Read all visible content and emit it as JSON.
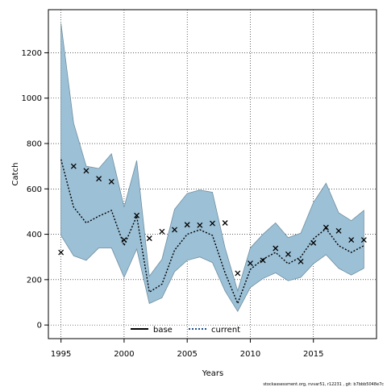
{
  "chart_data": {
    "type": "line",
    "xlabel": "Years",
    "ylabel": "Catch",
    "xlim": [
      1994,
      2020
    ],
    "ylim": [
      -60,
      1390
    ],
    "xticks": [
      1995,
      2000,
      2005,
      2010,
      2015
    ],
    "yticks": [
      0,
      200,
      400,
      600,
      800,
      1000,
      1200
    ],
    "grid": true,
    "legend": {
      "placement": "bottom-center",
      "entries": [
        {
          "label": "base",
          "style": "solid",
          "color": "#000000"
        },
        {
          "label": "current",
          "style": "dotted",
          "color": "#1b4f8a"
        }
      ]
    },
    "colors": {
      "band_fill": "#9cc0d6",
      "band_edge": "#6f8fa0",
      "median_line": "#000000",
      "marker": "#000000"
    },
    "years": [
      1995,
      1996,
      1997,
      1998,
      1999,
      2000,
      2001,
      2002,
      2003,
      2004,
      2005,
      2006,
      2007,
      2008,
      2009,
      2010,
      2011,
      2012,
      2013,
      2014,
      2015,
      2016,
      2017,
      2018,
      2019
    ],
    "series": [
      {
        "name": "current",
        "type": "line",
        "values": [
          730,
          520,
          450,
          480,
          505,
          350,
          480,
          145,
          180,
          330,
          400,
          420,
          395,
          230,
          95,
          245,
          290,
          320,
          270,
          300,
          380,
          425,
          350,
          320,
          350
        ]
      },
      {
        "type": "band",
        "lower": [
          395,
          305,
          285,
          340,
          340,
          210,
          335,
          95,
          120,
          235,
          285,
          300,
          275,
          150,
          60,
          165,
          205,
          230,
          195,
          210,
          270,
          310,
          250,
          220,
          250
        ],
        "upper": [
          1330,
          890,
          700,
          690,
          755,
          520,
          725,
          215,
          290,
          510,
          580,
          595,
          585,
          340,
          150,
          340,
          400,
          450,
          385,
          405,
          540,
          625,
          495,
          460,
          505
        ]
      },
      {
        "type": "scatter",
        "marker": "x",
        "x": [
          1995,
          1996,
          1997,
          1998,
          1999,
          2000,
          2001,
          2002,
          2003,
          2004,
          2005,
          2006,
          2007,
          2008,
          2009,
          2010,
          2011,
          2012,
          2013,
          2014,
          2015,
          2016,
          2017,
          2018,
          2019
        ],
        "values": [
          320,
          700,
          680,
          645,
          632,
          375,
          483,
          382,
          412,
          420,
          442,
          440,
          448,
          450,
          228,
          272,
          285,
          338,
          312,
          280,
          362,
          430,
          415,
          375,
          375
        ]
      }
    ]
  },
  "footer": {
    "text": "stockassessment.org, nvvar51, r12231 , git: b7bbb5048e7c"
  }
}
